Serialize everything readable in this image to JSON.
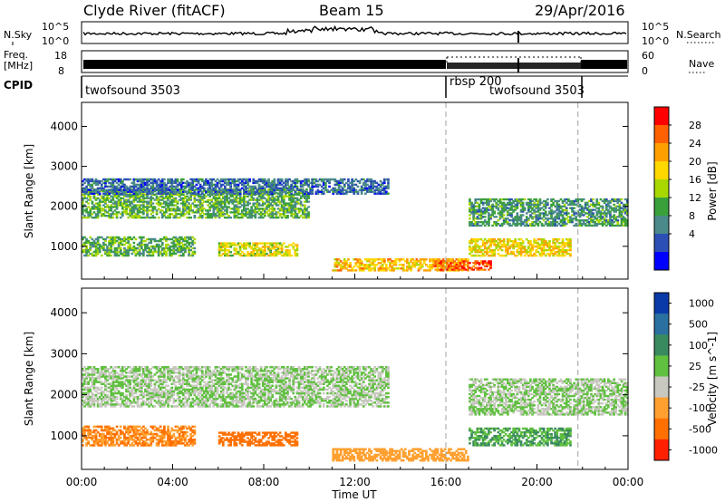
{
  "header": {
    "station": "Clyde River (fitACF)",
    "beam": "Beam 15",
    "date": "29/Apr/2016"
  },
  "noise_panel": {
    "left_label": "N.Sky",
    "right_label": "N.Search",
    "left_ticks": [
      "10^5",
      "10^0"
    ],
    "right_ticks": [
      "10^5",
      "10^0"
    ]
  },
  "freq_panel": {
    "left_label_1": "Freq.",
    "left_label_2": "[MHz]",
    "right_label": "Nave",
    "left_ticks": [
      "18",
      "8"
    ],
    "right_ticks": [
      "60",
      "0"
    ]
  },
  "cpid_panel": {
    "label": "CPID",
    "modes": [
      {
        "name": "twofsound 3503",
        "start_hour": 0,
        "end_hour": 16
      },
      {
        "name": "rbsp 200",
        "start_hour": 16,
        "end_hour": 21.8
      },
      {
        "name": "twofsound 3503",
        "start_hour": 18,
        "end_hour": 21.8
      }
    ]
  },
  "x_axis": {
    "label": "Time UT",
    "ticks": [
      "00:00",
      "04:00",
      "08:00",
      "12:00",
      "16:00",
      "20:00",
      "00:00"
    ]
  },
  "mode_change_hours": [
    16,
    21.8
  ],
  "chart_data": [
    {
      "type": "heatmap",
      "name": "power",
      "ylabel": "Slant Range [km]",
      "ylim": [
        180,
        4600
      ],
      "xlim": [
        0,
        24
      ],
      "yticks": [
        1000,
        2000,
        3000,
        4000
      ],
      "colorbar": {
        "label": "Power [dB]",
        "ticks": [
          "28",
          "24",
          "20",
          "16",
          "12",
          "8",
          "4"
        ],
        "colors": [
          "#0000ff",
          "#2b4fb4",
          "#4a8a8a",
          "#3aa03a",
          "#a8d800",
          "#ffd800",
          "#ffa000",
          "#ff6000",
          "#ff0000"
        ]
      },
      "echo_regions": [
        {
          "t0": 0,
          "t1": 10,
          "r0": 1700,
          "r1": 2450,
          "power": 12
        },
        {
          "t0": 0,
          "t1": 13.5,
          "r0": 2300,
          "r1": 2700,
          "power": 6
        },
        {
          "t0": 0,
          "t1": 5,
          "r0": 750,
          "r1": 1250,
          "power": 12
        },
        {
          "t0": 6,
          "t1": 9.5,
          "r0": 750,
          "r1": 1100,
          "power": 18
        },
        {
          "t0": 11,
          "t1": 17,
          "r0": 380,
          "r1": 700,
          "power": 22
        },
        {
          "t0": 15.5,
          "t1": 18,
          "r0": 400,
          "r1": 650,
          "power": 28
        },
        {
          "t0": 17,
          "t1": 21.5,
          "r0": 750,
          "r1": 1200,
          "power": 20
        },
        {
          "t0": 17,
          "t1": 24,
          "r0": 1500,
          "r1": 2200,
          "power": 10
        }
      ]
    },
    {
      "type": "heatmap",
      "name": "velocity",
      "ylabel": "Slant Range [km]",
      "ylim": [
        180,
        4600
      ],
      "xlim": [
        0,
        24
      ],
      "yticks": [
        1000,
        2000,
        3000,
        4000
      ],
      "colorbar": {
        "label": "Velocity [m s^-1]",
        "ticks": [
          "1000",
          "500",
          "100",
          "25",
          "-25",
          "-100",
          "-500",
          "-1000"
        ],
        "colors": [
          "#0a3aa8",
          "#2a70a0",
          "#3a8a60",
          "#60c040",
          "#c8c8c0",
          "#ffa030",
          "#ff7000",
          "#ff2000"
        ]
      },
      "echo_regions": [
        {
          "t0": 0,
          "t1": 13.5,
          "r0": 1700,
          "r1": 2700,
          "velocity": 0
        },
        {
          "t0": 0,
          "t1": 5,
          "r0": 750,
          "r1": 1250,
          "velocity": -300
        },
        {
          "t0": 6,
          "t1": 9.5,
          "r0": 750,
          "r1": 1100,
          "velocity": -400
        },
        {
          "t0": 11,
          "t1": 17,
          "r0": 380,
          "r1": 700,
          "velocity": -150
        },
        {
          "t0": 17,
          "t1": 21.5,
          "r0": 750,
          "r1": 1200,
          "velocity": 60
        },
        {
          "t0": 17,
          "t1": 24,
          "r0": 1500,
          "r1": 2400,
          "velocity": 0
        }
      ]
    }
  ]
}
